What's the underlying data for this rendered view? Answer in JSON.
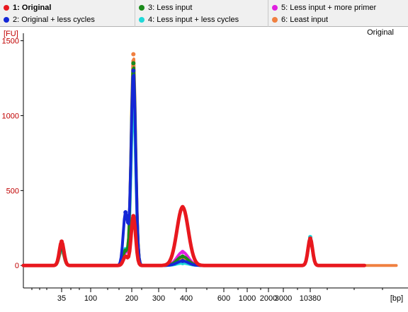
{
  "legend": [
    {
      "label": "1: Original",
      "color": "#e8181e",
      "active": true
    },
    {
      "label": "2: Original + less cycles",
      "color": "#1427d6",
      "active": false
    },
    {
      "label": "3: Less input",
      "color": "#1a8a1a",
      "active": false
    },
    {
      "label": "4: Less input + less cycles",
      "color": "#20d8d8",
      "active": false
    },
    {
      "label": "5: Less input + more primer",
      "color": "#e020e0",
      "active": false
    },
    {
      "label": "6: Least input",
      "color": "#f08040",
      "active": false
    }
  ],
  "chart_data": {
    "type": "line",
    "title": "Original",
    "ylabel": "[FU]",
    "xlabel": "[bp]",
    "ylim": [
      -150,
      1550
    ],
    "yticks": [
      0,
      500,
      1000,
      1500
    ],
    "xticks": [
      "35",
      "100",
      "200",
      "300",
      "400",
      "600",
      "1000",
      "2000",
      "3000",
      "10380"
    ],
    "series": [
      {
        "name": "1: Original",
        "color": "#e8181e",
        "points": [
          [
            35,
            160
          ],
          [
            180,
            60
          ],
          [
            205,
            330
          ],
          [
            385,
            390
          ],
          [
            10380,
            180
          ]
        ]
      },
      {
        "name": "2: Original + less cycles",
        "color": "#1427d6",
        "points": [
          [
            35,
            140
          ],
          [
            180,
            355
          ],
          [
            205,
            1300
          ],
          [
            385,
            30
          ],
          [
            10380,
            170
          ]
        ]
      },
      {
        "name": "3: Less input",
        "color": "#1a8a1a",
        "points": [
          [
            35,
            120
          ],
          [
            180,
            100
          ],
          [
            205,
            1350
          ],
          [
            385,
            60
          ],
          [
            10380,
            175
          ]
        ]
      },
      {
        "name": "4: Less input + less cycles",
        "color": "#20d8d8",
        "points": [
          [
            35,
            110
          ],
          [
            180,
            110
          ],
          [
            205,
            1100
          ],
          [
            385,
            15
          ],
          [
            10380,
            190
          ]
        ]
      },
      {
        "name": "5: Less input + more primer",
        "color": "#e020e0",
        "points": [
          [
            35,
            130
          ],
          [
            180,
            90
          ],
          [
            205,
            1250
          ],
          [
            385,
            90
          ],
          [
            10380,
            170
          ]
        ]
      },
      {
        "name": "6: Least input",
        "color": "#f08040",
        "points": [
          [
            35,
            100
          ],
          [
            180,
            100
          ],
          [
            205,
            1410
          ],
          [
            385,
            50
          ],
          [
            10380,
            160
          ]
        ]
      }
    ]
  }
}
